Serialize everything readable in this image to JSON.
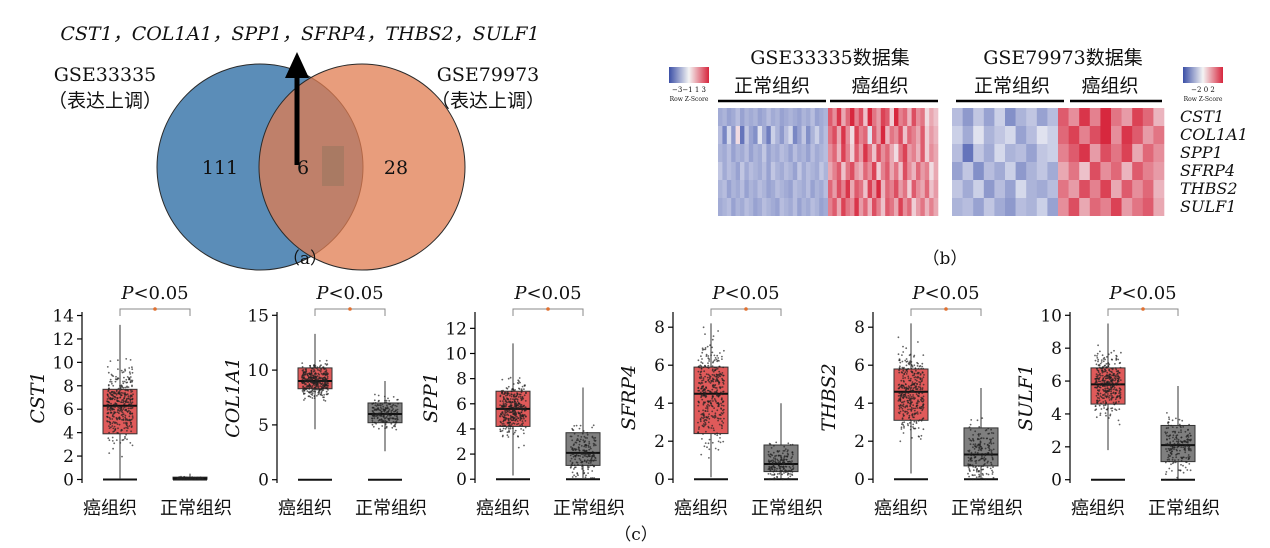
{
  "colors": {
    "venn_left": "#5b8db8",
    "venn_right": "#e07c50",
    "overlap": "#a97a63",
    "tumor_box": "#e05a5a",
    "normal_box": "#7f7f7f",
    "heat_red": "#d7364b",
    "heat_blue": "#4a5fae",
    "sig": "#e07030"
  },
  "panel_a": {
    "genes_line": "CST1，COL1A1，SPP1，SFRP4，THBS2，SULF1",
    "left_set": {
      "name": "GSE33335",
      "note": "（表达上调）",
      "count": "111"
    },
    "right_set": {
      "name": "GSE79973",
      "note": "（表达上调）",
      "count": "28"
    },
    "overlap_count": "6",
    "caption": "（a）"
  },
  "panel_b": {
    "dataset1": "GSE33335数据集",
    "dataset2": "GSE79973数据集",
    "group_normal": "正常组织",
    "group_tumor": "癌组织",
    "scale1": {
      "ticks": "−3−1 1 3",
      "label": "Row Z-Score"
    },
    "scale2": {
      "ticks": "−2  0  2",
      "label": "Row Z-Score"
    },
    "genes": [
      "CST1",
      "COL1A1",
      "SPP1",
      "SFRP4",
      "THBS2",
      "SULF1"
    ],
    "caption": "（b）"
  },
  "panel_c": {
    "caption": "（c）"
  },
  "chart_data": [
    {
      "type": "heatmap",
      "title": "GSE33335数据集",
      "rows": [
        "CST1",
        "COL1A1",
        "SPP1",
        "SFRP4",
        "THBS2",
        "SULF1"
      ],
      "column_groups": [
        {
          "name": "正常组织",
          "count": 25
        },
        {
          "name": "癌组织",
          "count": 25
        }
      ],
      "values": [
        [
          -0.8,
          -0.7,
          -0.9,
          -0.8,
          -0.6,
          -0.9,
          -0.7,
          -0.8,
          -0.7,
          -0.9,
          -0.8,
          -0.6,
          -0.8,
          -0.7,
          -0.9,
          -0.8,
          -0.7,
          -0.8,
          -0.9,
          -0.7,
          -0.8,
          -0.6,
          -0.9,
          -0.8,
          -0.7,
          1.2,
          0.8,
          1.5,
          0.6,
          1.1,
          1.8,
          0.9,
          1.3,
          0.4,
          1.6,
          1.0,
          0.7,
          1.4,
          1.2,
          0.3,
          1.7,
          0.9,
          1.1,
          0.5,
          1.3,
          0.8,
          1.0,
          0.2,
          0.6,
          0.4
        ],
        [
          -0.6,
          -1.2,
          -0.3,
          -1.0,
          0.2,
          -1.4,
          -0.5,
          -0.9,
          -1.1,
          -0.2,
          -0.8,
          -1.3,
          -0.4,
          -0.7,
          -1.0,
          -0.6,
          -0.3,
          -1.2,
          -0.9,
          -0.5,
          -1.1,
          -0.7,
          -0.4,
          -0.8,
          -0.6,
          1.0,
          1.3,
          0.6,
          1.5,
          0.8,
          0.2,
          1.4,
          0.9,
          1.1,
          -0.2,
          1.2,
          0.7,
          1.6,
          0.5,
          1.0,
          0.8,
          1.3,
          0.4,
          1.1,
          0.9,
          0.6,
          1.2,
          0.3,
          0.7,
          0.5
        ],
        [
          -0.7,
          -0.8,
          -0.6,
          -0.9,
          -0.7,
          -0.8,
          -0.6,
          -0.9,
          -0.7,
          -0.8,
          -0.5,
          -0.9,
          -0.7,
          -0.8,
          -0.6,
          -0.7,
          -0.9,
          -0.6,
          -0.8,
          -0.7,
          -0.9,
          -0.6,
          -0.8,
          -0.7,
          -0.6,
          0.8,
          1.1,
          0.5,
          1.4,
          0.9,
          0.3,
          1.2,
          0.7,
          1.5,
          1.0,
          0.4,
          1.3,
          0.8,
          1.1,
          0.6,
          0.2,
          1.0,
          1.4,
          0.7,
          0.9,
          0.5,
          1.2,
          0.3,
          0.8,
          0.6
        ],
        [
          -0.5,
          -0.8,
          -0.6,
          -0.7,
          -0.9,
          -0.5,
          -0.8,
          -0.6,
          -0.7,
          -0.8,
          -0.6,
          -0.9,
          -0.5,
          -0.7,
          -0.8,
          -0.6,
          -0.7,
          -0.9,
          -0.5,
          -0.8,
          -0.6,
          -0.7,
          -0.8,
          -0.5,
          -0.7,
          0.6,
          0.9,
          1.2,
          0.4,
          1.0,
          1.3,
          0.7,
          0.5,
          1.1,
          0.8,
          1.4,
          0.3,
          0.9,
          1.2,
          0.6,
          1.0,
          0.4,
          1.3,
          0.8,
          0.5,
          1.1,
          0.7,
          0.9,
          0.2,
          0.6
        ],
        [
          -0.7,
          -0.6,
          -0.9,
          -0.7,
          -0.8,
          -0.6,
          -0.9,
          -0.7,
          -0.8,
          -0.6,
          -0.7,
          -0.9,
          -0.8,
          -0.6,
          -0.7,
          -0.8,
          -0.9,
          -0.6,
          -0.7,
          -0.8,
          -0.6,
          -0.9,
          -0.7,
          -0.8,
          -0.6,
          1.1,
          0.7,
          1.3,
          0.9,
          1.5,
          0.6,
          1.2,
          1.0,
          0.4,
          1.4,
          0.8,
          1.6,
          0.5,
          1.1,
          0.9,
          1.3,
          0.7,
          1.0,
          0.3,
          1.2,
          0.8,
          0.6,
          1.1,
          0.4,
          0.7
        ],
        [
          -0.8,
          -0.7,
          -0.6,
          -0.9,
          -0.7,
          -0.8,
          -0.6,
          -0.7,
          -0.9,
          -0.8,
          -0.6,
          -0.7,
          -0.8,
          -0.9,
          -0.6,
          -0.7,
          -0.8,
          -0.6,
          -0.9,
          -0.7,
          -0.8,
          -0.6,
          -0.7,
          -0.9,
          -0.8,
          0.9,
          1.2,
          0.6,
          1.4,
          1.0,
          0.8,
          1.5,
          0.7,
          1.1,
          0.5,
          1.3,
          0.9,
          0.4,
          1.2,
          1.0,
          0.6,
          1.4,
          0.8,
          1.1,
          0.3,
          0.7,
          1.0,
          0.5,
          0.9,
          0.6
        ]
      ],
      "scale": [
        -3,
        3
      ]
    },
    {
      "type": "heatmap",
      "title": "GSE79973数据集",
      "rows": [
        "CST1",
        "COL1A1",
        "SPP1",
        "SFRP4",
        "THBS2",
        "SULF1"
      ],
      "column_groups": [
        {
          "name": "正常组织",
          "count": 10
        },
        {
          "name": "癌组织",
          "count": 10
        }
      ],
      "values": [
        [
          -0.6,
          -1.0,
          -0.5,
          -0.9,
          -0.4,
          -1.1,
          -0.7,
          -0.5,
          -0.9,
          -0.6,
          1.2,
          0.8,
          1.5,
          0.9,
          1.6,
          1.0,
          0.7,
          1.4,
          1.1,
          0.5
        ],
        [
          -0.4,
          -0.8,
          -0.2,
          -0.7,
          -0.5,
          -0.3,
          -0.9,
          -0.6,
          -0.2,
          -0.4,
          1.1,
          1.4,
          0.9,
          1.3,
          1.6,
          0.8,
          1.5,
          1.2,
          0.7,
          1.0
        ],
        [
          -0.6,
          -1.4,
          -0.5,
          -0.8,
          -0.3,
          -0.7,
          -0.6,
          -0.9,
          -0.5,
          -0.4,
          0.9,
          1.2,
          1.5,
          0.7,
          1.3,
          1.0,
          1.4,
          0.6,
          1.1,
          0.8
        ],
        [
          -0.9,
          -0.5,
          -1.1,
          -0.6,
          -0.8,
          -0.4,
          -1.0,
          -0.7,
          -0.5,
          -0.8,
          0.6,
          1.0,
          0.4,
          1.3,
          0.8,
          1.1,
          0.5,
          1.2,
          0.9,
          0.7
        ],
        [
          -0.5,
          -0.8,
          -0.4,
          -1.0,
          -0.6,
          -0.9,
          -0.3,
          -0.7,
          -0.8,
          -0.6,
          1.0,
          0.7,
          1.3,
          0.9,
          1.4,
          0.6,
          1.2,
          0.8,
          1.1,
          0.5
        ],
        [
          -0.7,
          -0.6,
          -0.9,
          -0.5,
          -0.8,
          -1.0,
          -0.6,
          -0.7,
          -0.4,
          -0.9,
          0.8,
          1.3,
          0.6,
          1.1,
          0.9,
          1.4,
          0.7,
          1.0,
          1.2,
          0.6
        ]
      ],
      "scale": [
        -2,
        2
      ]
    },
    {
      "type": "box",
      "gene": "CST1",
      "ylabel": "CST1",
      "p_label": "P<0.05",
      "categories": [
        "癌组织",
        "正常组织"
      ],
      "yticks": [
        0,
        2,
        4,
        6,
        8,
        10,
        12,
        14
      ],
      "ylim": [
        -0.3,
        14.3
      ],
      "boxes": [
        {
          "q1": 3.9,
          "median": 6.3,
          "q3": 7.7,
          "whisker_low": 0.1,
          "whisker_high": 13.2,
          "color": "tumor",
          "n": 380
        },
        {
          "q1": 0.02,
          "median": 0.1,
          "q3": 0.2,
          "whisker_low": 0,
          "whisker_high": 0.5,
          "color": "normal",
          "n": 80
        }
      ]
    },
    {
      "type": "box",
      "gene": "COL1A1",
      "ylabel": "COL1A1",
      "p_label": "P<0.05",
      "categories": [
        "癌组织",
        "正常组织"
      ],
      "yticks": [
        0,
        5,
        10,
        15
      ],
      "ylim": [
        -0.3,
        15.3
      ],
      "boxes": [
        {
          "q1": 8.3,
          "median": 9.0,
          "q3": 10.2,
          "whisker_low": 4.6,
          "whisker_high": 13.3,
          "color": "tumor",
          "n": 380
        },
        {
          "q1": 5.2,
          "median": 6.0,
          "q3": 7.0,
          "whisker_low": 2.6,
          "whisker_high": 9.0,
          "color": "normal",
          "n": 200
        }
      ]
    },
    {
      "type": "box",
      "gene": "SPP1",
      "ylabel": "SPP1",
      "p_label": "P<0.05",
      "categories": [
        "癌组织",
        "正常组织"
      ],
      "yticks": [
        0,
        2,
        4,
        6,
        8,
        10,
        12
      ],
      "ylim": [
        -0.3,
        13.3
      ],
      "boxes": [
        {
          "q1": 4.2,
          "median": 5.6,
          "q3": 7.0,
          "whisker_low": 0.3,
          "whisker_high": 10.8,
          "color": "tumor",
          "n": 380
        },
        {
          "q1": 1.1,
          "median": 2.1,
          "q3": 3.7,
          "whisker_low": 0.1,
          "whisker_high": 7.3,
          "color": "normal",
          "n": 200
        }
      ]
    },
    {
      "type": "box",
      "gene": "SFRP4",
      "ylabel": "SFRP4",
      "p_label": "P<0.05",
      "categories": [
        "癌组织",
        "正常组织"
      ],
      "yticks": [
        0,
        2,
        4,
        6,
        8
      ],
      "ylim": [
        -0.2,
        8.8
      ],
      "boxes": [
        {
          "q1": 2.4,
          "median": 4.5,
          "q3": 5.9,
          "whisker_low": 0.1,
          "whisker_high": 8.2,
          "color": "tumor",
          "n": 380
        },
        {
          "q1": 0.4,
          "median": 0.8,
          "q3": 1.8,
          "whisker_low": 0,
          "whisker_high": 4.0,
          "color": "normal",
          "n": 200
        }
      ]
    },
    {
      "type": "box",
      "gene": "THBS2",
      "ylabel": "THBS2",
      "p_label": "P<0.05",
      "categories": [
        "癌组织",
        "正常组织"
      ],
      "yticks": [
        0,
        2,
        4,
        6,
        8
      ],
      "ylim": [
        -0.2,
        8.8
      ],
      "boxes": [
        {
          "q1": 3.1,
          "median": 4.6,
          "q3": 5.8,
          "whisker_low": 0.3,
          "whisker_high": 8.2,
          "color": "tumor",
          "n": 380
        },
        {
          "q1": 0.7,
          "median": 1.3,
          "q3": 2.7,
          "whisker_low": 0,
          "whisker_high": 4.8,
          "color": "normal",
          "n": 200
        }
      ]
    },
    {
      "type": "box",
      "gene": "SULF1",
      "ylabel": "SULF1",
      "p_label": "P<0.05",
      "categories": [
        "癌组织",
        "正常组织"
      ],
      "yticks": [
        0,
        2,
        4,
        6,
        8,
        10
      ],
      "ylim": [
        -0.2,
        10.2
      ],
      "boxes": [
        {
          "q1": 4.6,
          "median": 5.8,
          "q3": 6.8,
          "whisker_low": 1.8,
          "whisker_high": 9.5,
          "color": "tumor",
          "n": 380
        },
        {
          "q1": 1.1,
          "median": 2.1,
          "q3": 3.3,
          "whisker_low": 0,
          "whisker_high": 5.7,
          "color": "normal",
          "n": 200
        }
      ]
    }
  ]
}
